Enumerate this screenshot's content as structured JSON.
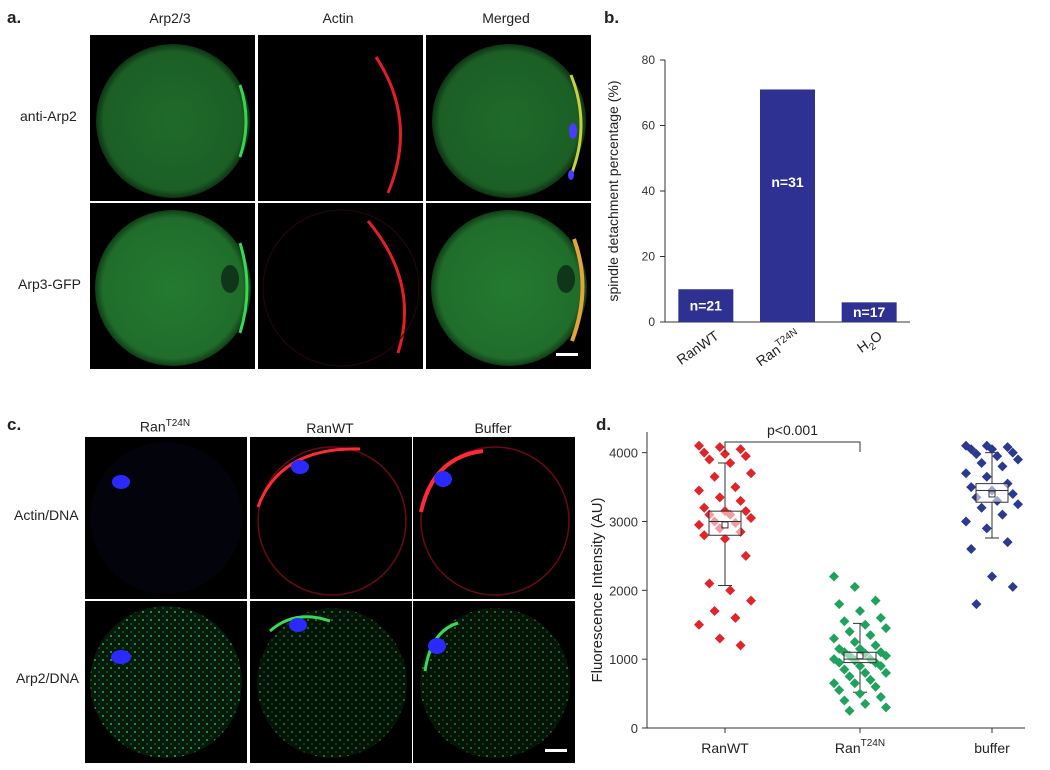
{
  "panel_a": {
    "letter": "a.",
    "columns": [
      "Arp2/3",
      "Actin",
      "Merged"
    ],
    "rows": [
      "anti-Arp2",
      "Arp3-GFP"
    ]
  },
  "panel_b": {
    "letter": "b."
  },
  "panel_c": {
    "letter": "c.",
    "columns": [
      {
        "base": "Ran",
        "sup": "T24N"
      },
      {
        "base": "RanWT",
        "sup": ""
      },
      {
        "base": "Buffer",
        "sup": ""
      }
    ],
    "rows": [
      "Actin/DNA",
      "Arp2/DNA"
    ]
  },
  "panel_d": {
    "letter": "d."
  },
  "colors": {
    "bar": "#2e3192",
    "green_stain": "#2bb24c",
    "red_stain": "#e11f25",
    "blue_stain": "#2a2aff",
    "ranwt_marker": "#e02429",
    "rant24n_marker": "#1fa35c",
    "buffer_marker": "#2b3990"
  },
  "chart_data": [
    {
      "type": "bar",
      "categories": [
        {
          "base": "RanWT",
          "sup": ""
        },
        {
          "base": "Ran",
          "sup": "T24N"
        },
        {
          "base": "H",
          "sub": "2",
          "rest": "O"
        }
      ],
      "values": [
        10,
        71,
        6
      ],
      "bar_labels": [
        "n=21",
        "n=31",
        "n=17"
      ],
      "ylabel": "spindle detachment percentage (%)",
      "yticks": [
        0,
        20,
        40,
        60,
        80
      ],
      "ylim": [
        0,
        80
      ],
      "color": "#2e3192"
    },
    {
      "type": "scatter",
      "categories": [
        {
          "base": "RanWT",
          "sup": ""
        },
        {
          "base": "Ran",
          "sup": "T24N"
        },
        {
          "base": "buffer",
          "sup": ""
        }
      ],
      "ylabel": "Fluorescence Intensity (AU)",
      "yticks": [
        0,
        1000,
        2000,
        3000,
        4000
      ],
      "ylim": [
        0,
        4300
      ],
      "annotation": "p<0.001",
      "series": [
        {
          "color": "#e02429",
          "box": {
            "q1": 2800,
            "median": 3000,
            "mean": 2950,
            "q3": 3150,
            "whisker_low": 2070,
            "whisker_high": 3850
          },
          "points": [
            4100,
            4080,
            4050,
            4000,
            3980,
            3950,
            3900,
            3850,
            3700,
            3650,
            3500,
            3450,
            3350,
            3300,
            3200,
            3150,
            3150,
            3100,
            3100,
            3050,
            3000,
            2980,
            2950,
            2900,
            2850,
            2800,
            2750,
            2500,
            2100,
            2000,
            1850,
            1700,
            1600,
            1500,
            1300,
            1200
          ]
        },
        {
          "color": "#1fa35c",
          "box": {
            "q1": 950,
            "median": 1000,
            "mean": 1050,
            "q3": 1100,
            "whisker_low": 520,
            "whisker_high": 1520
          },
          "points": [
            2200,
            2050,
            1850,
            1800,
            1700,
            1600,
            1550,
            1500,
            1450,
            1400,
            1350,
            1300,
            1250,
            1200,
            1150,
            1150,
            1100,
            1100,
            1080,
            1050,
            1050,
            1000,
            1000,
            980,
            950,
            950,
            900,
            900,
            850,
            800,
            800,
            750,
            700,
            650,
            650,
            600,
            550,
            500,
            450,
            400,
            350,
            300,
            250
          ]
        },
        {
          "color": "#2b3990",
          "box": {
            "q1": 3280,
            "median": 3450,
            "mean": 3400,
            "q3": 3550,
            "whisker_low": 2760,
            "whisker_high": 4000
          },
          "points": [
            4100,
            4100,
            4080,
            4050,
            4050,
            4000,
            3980,
            3950,
            3900,
            3850,
            3800,
            3700,
            3650,
            3550,
            3500,
            3450,
            3400,
            3350,
            3300,
            3250,
            3200,
            3100,
            3000,
            2900,
            2700,
            2600,
            2200,
            2050,
            1800
          ]
        }
      ]
    }
  ]
}
